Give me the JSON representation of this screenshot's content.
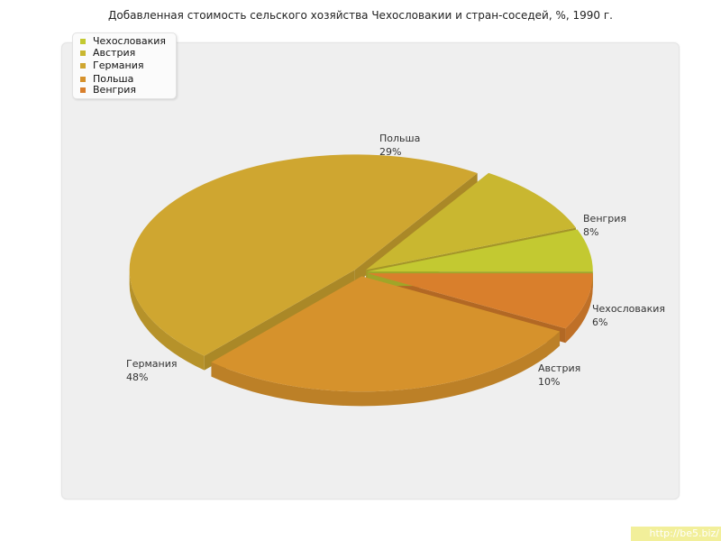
{
  "title": "Добавленная стоимость сельского хозяйства Чехословакии и стран-соседей, %, 1990 г.",
  "watermark": "http://be5.biz/",
  "chart_data": {
    "type": "pie",
    "title": "Добавленная стоимость сельского хозяйства Чехословакии и стран-соседей, %, 1990 г.",
    "legend_position": "top-left",
    "slices": [
      {
        "name": "Чехословакия",
        "value": 6,
        "label_value": "6%",
        "color": "#c3c931"
      },
      {
        "name": "Австрия",
        "value": 10,
        "label_value": "10%",
        "color": "#c9b730"
      },
      {
        "name": "Германия",
        "value": 48,
        "label_value": "48%",
        "color": "#cfa630"
      },
      {
        "name": "Польша",
        "value": 29,
        "label_value": "29%",
        "color": "#d6922c"
      },
      {
        "name": "Венгрия",
        "value": 8,
        "label_value": "8%",
        "color": "#d97f2c"
      }
    ]
  }
}
